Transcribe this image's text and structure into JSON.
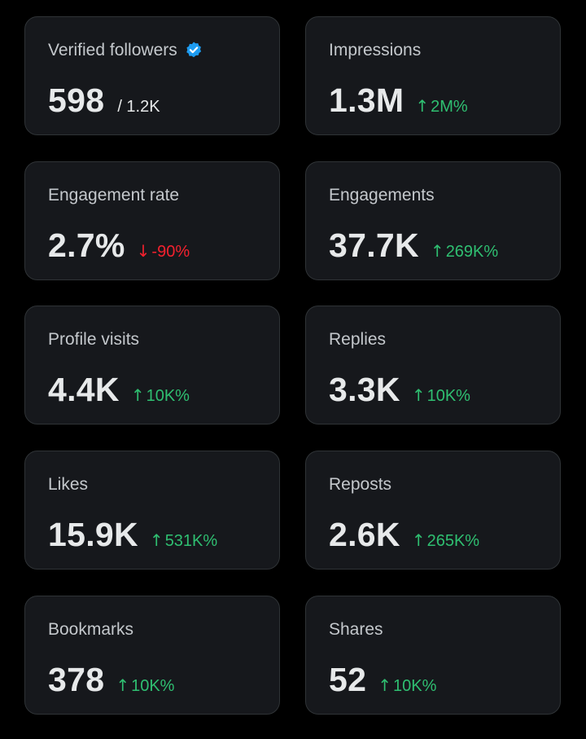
{
  "colors": {
    "background": "#000000",
    "card": "#16181c",
    "card_border": "#2f3336",
    "text": "#e7e9ea",
    "label": "#c4c8cc",
    "positive": "#2fbf71",
    "negative": "#f4212e",
    "verified": "#1d9bf0"
  },
  "cards": [
    {
      "label": "Verified followers",
      "value": "598",
      "sub": "/ 1.2K",
      "icon": "verified-badge-icon"
    },
    {
      "label": "Impressions",
      "value": "1.3M",
      "change": "2M%",
      "direction": "up",
      "arrow": "↑"
    },
    {
      "label": "Engagement rate",
      "value": "2.7%",
      "change": "-90%",
      "direction": "down",
      "arrow": "↓"
    },
    {
      "label": "Engagements",
      "value": "37.7K",
      "change": "269K%",
      "direction": "up",
      "arrow": "↑"
    },
    {
      "label": "Profile visits",
      "value": "4.4K",
      "change": "10K%",
      "direction": "up",
      "arrow": "↑"
    },
    {
      "label": "Replies",
      "value": "3.3K",
      "change": "10K%",
      "direction": "up",
      "arrow": "↑"
    },
    {
      "label": "Likes",
      "value": "15.9K",
      "change": "531K%",
      "direction": "up",
      "arrow": "↑"
    },
    {
      "label": "Reposts",
      "value": "2.6K",
      "change": "265K%",
      "direction": "up",
      "arrow": "↑"
    },
    {
      "label": "Bookmarks",
      "value": "378",
      "change": "10K%",
      "direction": "up",
      "arrow": "↑"
    },
    {
      "label": "Shares",
      "value": "52",
      "change": "10K%",
      "direction": "up",
      "arrow": "↑"
    }
  ]
}
